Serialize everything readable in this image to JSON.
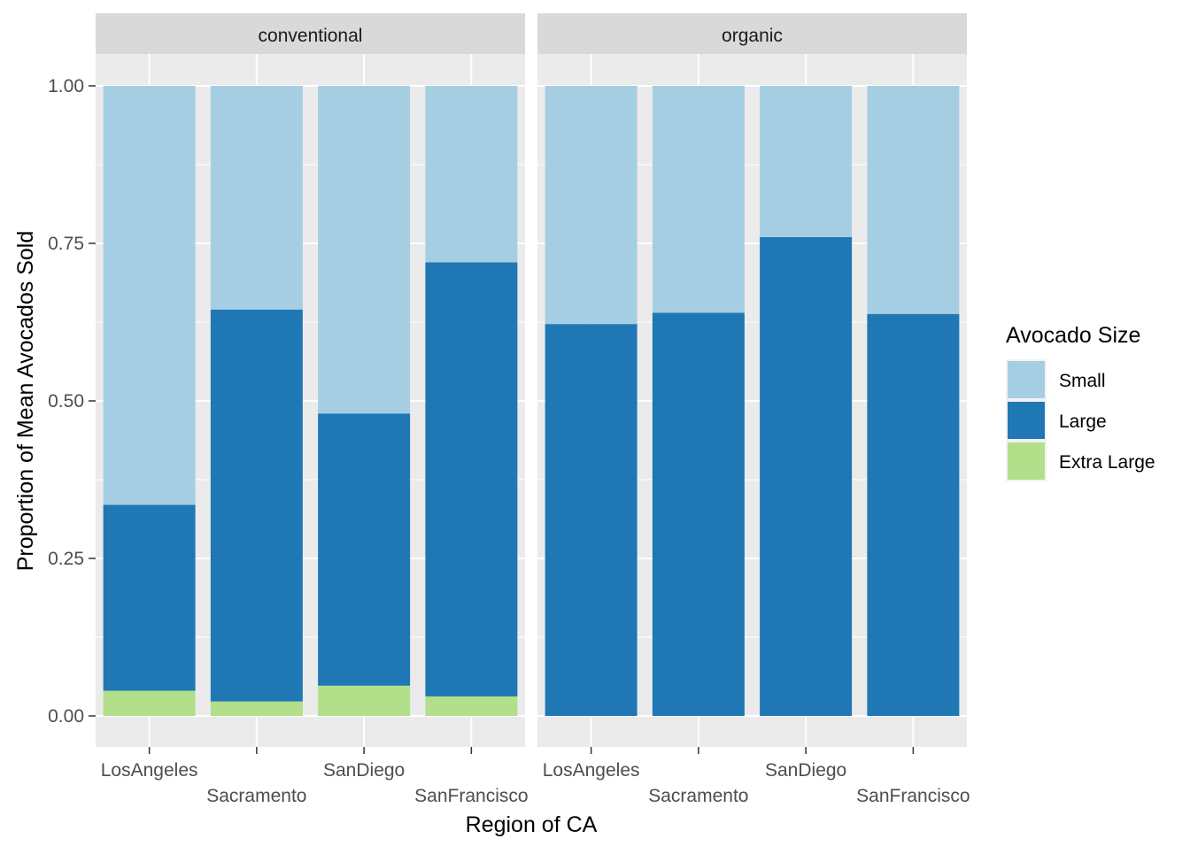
{
  "chart_data": {
    "type": "bar",
    "stacked": true,
    "xlabel": "Region of CA",
    "ylabel": "Proportion of Mean Avocados Sold",
    "ylim": [
      0,
      1
    ],
    "y_ticks": [
      "0.00",
      "0.25",
      "0.50",
      "0.75",
      "1.00"
    ],
    "grid": true,
    "legend": {
      "title": "Avocado Size",
      "position": "right",
      "entries": [
        "Small",
        "Large",
        "Extra Large"
      ]
    },
    "colors": {
      "Small": "#a6cee3",
      "Large": "#1f78b4",
      "Extra Large": "#b2df8a"
    },
    "categories": [
      "LosAngeles",
      "Sacramento",
      "SanDiego",
      "SanFrancisco"
    ],
    "facets": [
      {
        "label": "conventional",
        "series": [
          {
            "name": "Small",
            "values": [
              0.665,
              0.355,
              0.52,
              0.28
            ]
          },
          {
            "name": "Large",
            "values": [
              0.295,
              0.622,
              0.432,
              0.689
            ]
          },
          {
            "name": "Extra Large",
            "values": [
              0.04,
              0.023,
              0.048,
              0.031
            ]
          }
        ]
      },
      {
        "label": "organic",
        "series": [
          {
            "name": "Small",
            "values": [
              0.378,
              0.36,
              0.24,
              0.362
            ]
          },
          {
            "name": "Large",
            "values": [
              0.622,
              0.64,
              0.76,
              0.638
            ]
          },
          {
            "name": "Extra Large",
            "values": [
              0,
              0,
              0,
              0
            ]
          }
        ]
      }
    ]
  }
}
